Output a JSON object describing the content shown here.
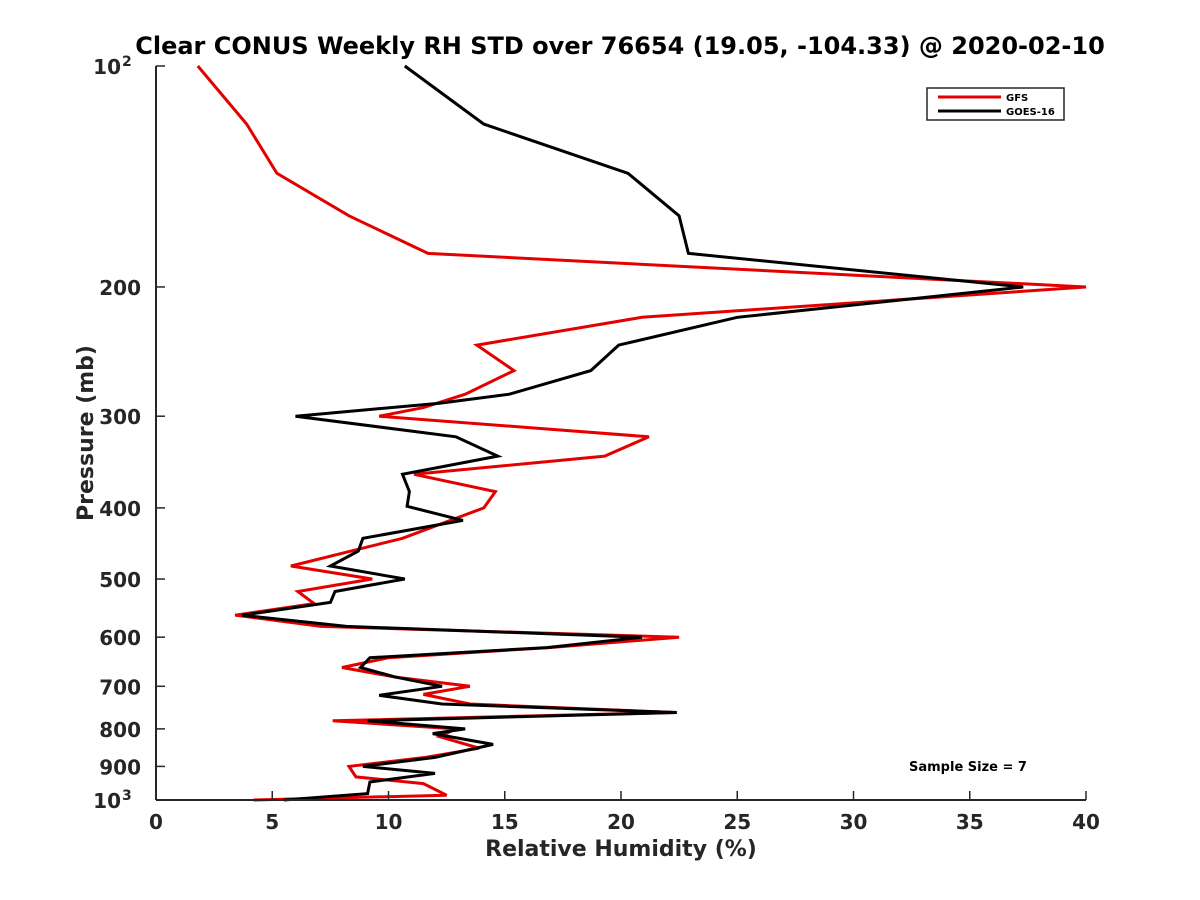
{
  "chart_data": {
    "type": "line",
    "title": "Clear CONUS Weekly RH STD over 76654 (19.05, -104.33) @ 2020-02-10",
    "xlabel": "Relative Humidity (%)",
    "ylabel": "Pressure (mb)",
    "xlim": [
      0,
      40
    ],
    "ylim": [
      100,
      1000
    ],
    "yscale": "log",
    "yreversed": true,
    "grid": false,
    "x_ticks": [
      0,
      5,
      10,
      15,
      20,
      25,
      30,
      35,
      40
    ],
    "x_tick_labels": [
      "0",
      "5",
      "10",
      "15",
      "20",
      "25",
      "30",
      "35",
      "40"
    ],
    "y_ticks": [
      100,
      200,
      300,
      400,
      500,
      600,
      700,
      800,
      900,
      1000
    ],
    "y_tick_labels": [
      {
        "base": "10",
        "exp": "2"
      },
      {
        "base": "200"
      },
      {
        "base": "300"
      },
      {
        "base": "400"
      },
      {
        "base": "500"
      },
      {
        "base": "600"
      },
      {
        "base": "700"
      },
      {
        "base": "800"
      },
      {
        "base": "900"
      },
      {
        "base": "10",
        "exp": "3"
      }
    ],
    "legend_placement": "top-right",
    "annotation": "Sample Size = 7",
    "series": [
      {
        "name": "GFS",
        "color": "#e50000",
        "points": [
          [
            1.8,
            100
          ],
          [
            3.9,
            120
          ],
          [
            5.2,
            140
          ],
          [
            8.3,
            160
          ],
          [
            11.7,
            180
          ],
          [
            40.0,
            200
          ],
          [
            20.9,
            220
          ],
          [
            13.8,
            240
          ],
          [
            15.4,
            260
          ],
          [
            13.3,
            280
          ],
          [
            11.5,
            292
          ],
          [
            9.6,
            300
          ],
          [
            21.2,
            320
          ],
          [
            19.3,
            340
          ],
          [
            11.1,
            360
          ],
          [
            14.6,
            380
          ],
          [
            14.1,
            400
          ],
          [
            10.6,
            440
          ],
          [
            5.8,
            480
          ],
          [
            9.3,
            500
          ],
          [
            6.1,
            520
          ],
          [
            6.8,
            540
          ],
          [
            3.4,
            560
          ],
          [
            7.1,
            580
          ],
          [
            22.5,
            600
          ],
          [
            16.9,
            620
          ],
          [
            10.0,
            640
          ],
          [
            8.0,
            660
          ],
          [
            10.3,
            680
          ],
          [
            13.5,
            700
          ],
          [
            11.5,
            718
          ],
          [
            13.5,
            740
          ],
          [
            22.3,
            760
          ],
          [
            7.6,
            780
          ],
          [
            12.9,
            800
          ],
          [
            12.2,
            820
          ],
          [
            13.9,
            850
          ],
          [
            11.6,
            875
          ],
          [
            8.3,
            900
          ],
          [
            8.6,
            930
          ],
          [
            11.5,
            950
          ],
          [
            12.5,
            985
          ],
          [
            4.2,
            1000
          ]
        ]
      },
      {
        "name": "GOES-16",
        "color": "#000000",
        "points": [
          [
            10.7,
            100
          ],
          [
            14.1,
            120
          ],
          [
            20.3,
            140
          ],
          [
            22.5,
            160
          ],
          [
            22.9,
            180
          ],
          [
            37.3,
            200
          ],
          [
            25.0,
            220
          ],
          [
            19.9,
            240
          ],
          [
            18.7,
            260
          ],
          [
            15.2,
            280
          ],
          [
            12.2,
            288
          ],
          [
            6.0,
            300
          ],
          [
            12.9,
            320
          ],
          [
            14.7,
            340
          ],
          [
            10.6,
            360
          ],
          [
            10.9,
            380
          ],
          [
            10.8,
            398
          ],
          [
            13.2,
            416
          ],
          [
            8.9,
            440
          ],
          [
            8.7,
            458
          ],
          [
            7.5,
            480
          ],
          [
            10.7,
            500
          ],
          [
            7.7,
            520
          ],
          [
            7.5,
            538
          ],
          [
            3.7,
            560
          ],
          [
            8.2,
            580
          ],
          [
            20.9,
            600
          ],
          [
            16.8,
            620
          ],
          [
            9.2,
            640
          ],
          [
            8.8,
            660
          ],
          [
            10.3,
            680
          ],
          [
            12.3,
            700
          ],
          [
            9.6,
            720
          ],
          [
            12.3,
            740
          ],
          [
            22.4,
            760
          ],
          [
            9.1,
            780
          ],
          [
            13.3,
            800
          ],
          [
            11.9,
            812
          ],
          [
            14.5,
            840
          ],
          [
            12.0,
            875
          ],
          [
            8.9,
            900
          ],
          [
            12.0,
            920
          ],
          [
            9.2,
            945
          ],
          [
            9.1,
            980
          ],
          [
            5.5,
            1000
          ]
        ]
      }
    ]
  }
}
